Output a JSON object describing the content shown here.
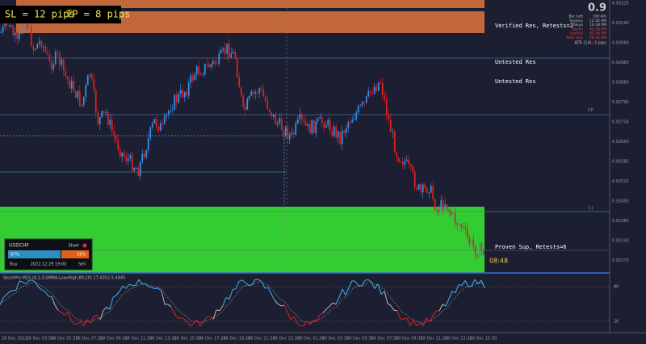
{
  "header": {
    "sl": "SL = 12 pips",
    "tp": "TP = 8 pips"
  },
  "zones": {
    "verified_res": "Verified Res, Retests=2",
    "untested_res_1": "Untested Res",
    "untested_res_2": "Untested Res",
    "proven_sup": "Proven Sup, Retests=6"
  },
  "levels": {
    "pp": "PP",
    "s1": "S1"
  },
  "info": {
    "big": "0.9",
    "rows": [
      [
        "Bar Left",
        "(00:40)"
      ],
      [
        "Sydney",
        "12:38 AM"
      ],
      [
        "Tokyo",
        "10:38 PM"
      ],
      [
        "Berlin",
        "02:38 PM"
      ],
      [
        "London",
        "01:38 PM"
      ],
      [
        "New York",
        "08:38 AM"
      ]
    ],
    "atr": "ATR (14): 3 pips"
  },
  "price_axis": [
    "0.93325",
    "0.93190",
    "0.93060",
    "0.92985",
    "0.92880",
    "0.92790",
    "0.92716",
    "0.92650",
    "0.92585",
    "0.92515",
    "0.92450",
    "0.92385",
    "0.92330",
    "0.92270"
  ],
  "panel": {
    "symbol": "USDCHF",
    "side": "Short",
    "buy_pct": "67%",
    "sell_pct": "33%",
    "buy": "Buy",
    "sell": "Sell",
    "time": "2022.12.29 19:00"
  },
  "clock": "08:48",
  "indicator": {
    "label": "StochPro M15 (8,1,3,SMMA,Low/High,80,20) 17.4352 5.4945",
    "levels": [
      "80",
      "20"
    ]
  },
  "time_axis": [
    "28 Dec 2022",
    "28 Dec 03:30",
    "28 Dec 05:30",
    "28 Dec 07:30",
    "28 Dec 09:30",
    "28 Dec 11:30",
    "28 Dec 13:30",
    "28 Dec 15:30",
    "28 Dec 17:30",
    "28 Dec 19:30",
    "28 Dec 21:30",
    "28 Dec 23:30",
    "29 Dec 01:30",
    "29 Dec 03:30",
    "29 Dec 05:30",
    "29 Dec 07:30",
    "29 Dec 09:30",
    "29 Dec 11:30",
    "29 Dec 13:30",
    "29 Dec 15:30"
  ]
}
